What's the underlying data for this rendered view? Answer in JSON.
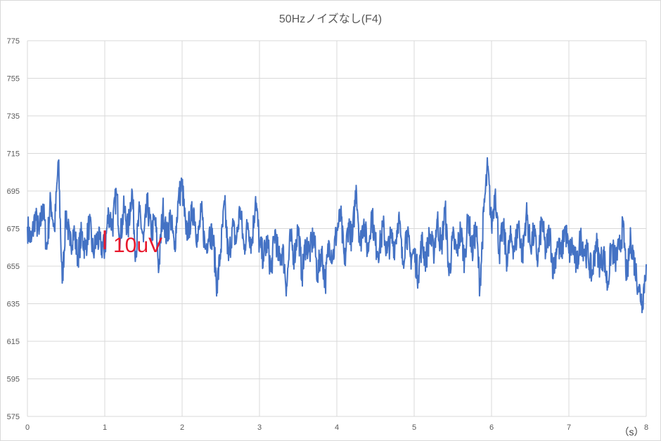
{
  "chart_data": {
    "type": "line",
    "title": "50Hzノイズなし(F4)",
    "xlabel": "",
    "ylabel": "",
    "x_unit_label": "（s）",
    "xlim": [
      0,
      8
    ],
    "ylim": [
      575,
      775
    ],
    "x_ticks": [
      "0",
      "1",
      "2",
      "3",
      "4",
      "5",
      "6",
      "7",
      "8"
    ],
    "y_ticks": [
      "775",
      "755",
      "735",
      "715",
      "695",
      "675",
      "655",
      "635",
      "615",
      "595",
      "575"
    ],
    "grid": true,
    "legend": "none",
    "series_color": "#4472c4",
    "annotation": {
      "text": "10uV",
      "color": "#e8182c",
      "bar_x": 1.0,
      "bar_y_from": 664,
      "bar_y_to": 674
    },
    "series": [
      {
        "x": [
          0,
          0.05,
          0.1,
          0.15,
          0.2,
          0.25,
          0.3,
          0.35,
          0.4,
          0.45,
          0.5,
          0.55,
          0.6,
          0.65,
          0.7,
          0.75,
          0.8,
          0.85,
          0.9,
          0.95,
          1.0,
          1.05,
          1.1,
          1.15,
          1.2,
          1.25,
          1.3,
          1.35,
          1.4,
          1.45,
          1.5,
          1.55,
          1.6,
          1.65,
          1.7,
          1.75,
          1.8,
          1.85,
          1.9,
          1.95,
          2.0,
          2.05,
          2.1,
          2.15,
          2.2,
          2.25,
          2.3,
          2.35,
          2.4,
          2.45,
          2.5,
          2.55,
          2.6,
          2.65,
          2.7,
          2.75,
          2.8,
          2.85,
          2.9,
          2.95,
          3.0,
          3.05,
          3.1,
          3.15,
          3.2,
          3.25,
          3.3,
          3.35,
          3.4,
          3.45,
          3.5,
          3.55,
          3.6,
          3.65,
          3.7,
          3.75,
          3.8,
          3.85,
          3.9,
          3.95,
          4.0,
          4.05,
          4.1,
          4.15,
          4.2,
          4.25,
          4.3,
          4.35,
          4.4,
          4.45,
          4.5,
          4.55,
          4.6,
          4.65,
          4.7,
          4.75,
          4.8,
          4.85,
          4.9,
          4.95,
          5.0,
          5.05,
          5.1,
          5.15,
          5.2,
          5.25,
          5.3,
          5.35,
          5.4,
          5.45,
          5.5,
          5.55,
          5.6,
          5.65,
          5.7,
          5.75,
          5.8,
          5.85,
          5.9,
          5.95,
          6.0,
          6.05,
          6.1,
          6.15,
          6.2,
          6.25,
          6.3,
          6.35,
          6.4,
          6.45,
          6.5,
          6.55,
          6.6,
          6.65,
          6.7,
          6.75,
          6.8,
          6.85,
          6.9,
          6.95,
          7.0,
          7.05,
          7.1,
          7.15,
          7.2,
          7.25,
          7.3,
          7.35,
          7.4,
          7.45,
          7.5,
          7.55,
          7.6,
          7.65,
          7.7,
          7.75,
          7.8,
          7.85,
          7.9,
          7.95,
          8.0
        ],
        "y": [
          676,
          668,
          682,
          672,
          688,
          664,
          690,
          674,
          711,
          646,
          684,
          666,
          674,
          660,
          672,
          664,
          678,
          662,
          670,
          666,
          664,
          684,
          676,
          694,
          670,
          686,
          674,
          696,
          662,
          684,
          668,
          688,
          672,
          680,
          654,
          686,
          670,
          682,
          664,
          690,
          699,
          672,
          678,
          686,
          668,
          684,
          664,
          674,
          670,
          644,
          664,
          688,
          658,
          676,
          668,
          686,
          664,
          678,
          666,
          692,
          666,
          660,
          668,
          652,
          674,
          658,
          664,
          644,
          670,
          660,
          676,
          650,
          668,
          662,
          672,
          650,
          664,
          646,
          668,
          660,
          674,
          682,
          656,
          678,
          668,
          698,
          666,
          680,
          662,
          684,
          666,
          664,
          676,
          662,
          670,
          666,
          682,
          656,
          674,
          660,
          662,
          650,
          668,
          658,
          672,
          662,
          680,
          664,
          686,
          650,
          670,
          662,
          674,
          658,
          682,
          662,
          676,
          644,
          684,
          708,
          676,
          696,
          662,
          676,
          658,
          670,
          664,
          678,
          660,
          684,
          666,
          672,
          658,
          680,
          662,
          674,
          652,
          668,
          660,
          676,
          662,
          666,
          654,
          670,
          664,
          660,
          650,
          668,
          656,
          662,
          644,
          666,
          658,
          664,
          676,
          648,
          670,
          656,
          644,
          636,
          656
        ]
      }
    ]
  }
}
